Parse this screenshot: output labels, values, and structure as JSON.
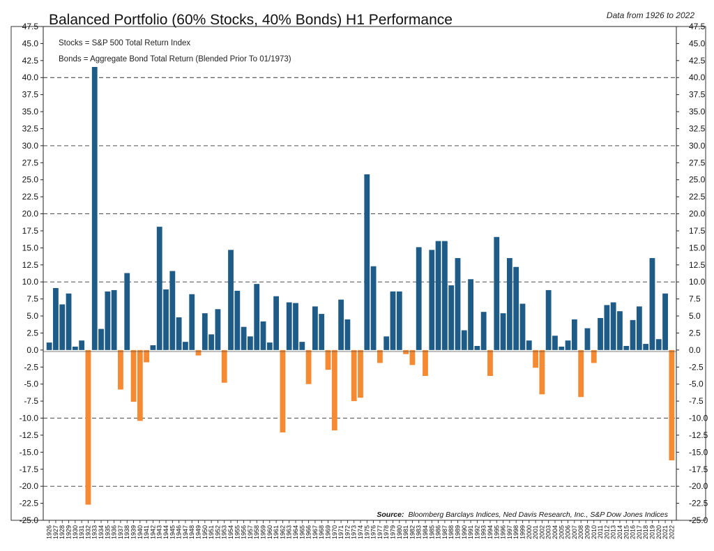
{
  "chart_data": {
    "type": "bar",
    "title": "Balanced Portfolio (60% Stocks, 40% Bonds) H1 Performance",
    "date_range": "Data from 1926 to 2022",
    "notes": [
      "Stocks = S&P 500 Total Return Index",
      "Bonds = Aggregate Bond Total Return (Blended Prior To 01/1973)"
    ],
    "source_label": "Source:",
    "source_text": "Bloomberg Barclays Indices, Ned Davis Research, Inc., S&P Dow Jones Indices",
    "ylim": [
      -25,
      47.5
    ],
    "ytick_labels": [
      "47.5",
      "45.0",
      "42.5",
      "40.0",
      "37.5",
      "35.0",
      "32.5",
      "30.0",
      "27.5",
      "25.0",
      "22.5",
      "20.0",
      "17.5",
      "15.0",
      "12.5",
      "10.0",
      "7.5",
      "5.0",
      "2.5",
      "0.0",
      "-2.5",
      "-5.0",
      "-7.5",
      "-10.0",
      "-12.5",
      "-15.0",
      "-17.5",
      "-20.0",
      "-22.5",
      "-25.0"
    ],
    "dashed_gridlines": [
      40,
      30,
      20,
      10,
      -10,
      -20
    ],
    "grid": "dashed lines every 10 units",
    "positive_color": "#1f5b87",
    "negative_color": "#f58a33",
    "categories": [
      "1926",
      "1927",
      "1928",
      "1929",
      "1930",
      "1931",
      "1932",
      "1933",
      "1934",
      "1935",
      "1936",
      "1937",
      "1938",
      "1939",
      "1940",
      "1941",
      "1942",
      "1943",
      "1944",
      "1945",
      "1946",
      "1947",
      "1948",
      "1949",
      "1950",
      "1951",
      "1952",
      "1953",
      "1954",
      "1955",
      "1956",
      "1957",
      "1958",
      "1959",
      "1960",
      "1961",
      "1962",
      "1963",
      "1964",
      "1965",
      "1966",
      "1967",
      "1968",
      "1969",
      "1970",
      "1971",
      "1972",
      "1973",
      "1974",
      "1975",
      "1976",
      "1977",
      "1978",
      "1979",
      "1980",
      "1981",
      "1982",
      "1983",
      "1984",
      "1985",
      "1986",
      "1987",
      "1988",
      "1989",
      "1990",
      "1991",
      "1992",
      "1993",
      "1994",
      "1995",
      "1996",
      "1997",
      "1998",
      "1999",
      "2000",
      "2001",
      "2002",
      "2003",
      "2004",
      "2005",
      "2006",
      "2007",
      "2008",
      "2009",
      "2010",
      "2011",
      "2012",
      "2013",
      "2014",
      "2015",
      "2016",
      "2017",
      "2018",
      "2019",
      "2020",
      "2021",
      "2022"
    ],
    "values": [
      1.1,
      9.1,
      6.7,
      8.3,
      0.5,
      1.4,
      -22.7,
      42.2,
      3.1,
      8.6,
      8.8,
      -5.8,
      11.3,
      -7.6,
      -10.4,
      -1.8,
      0.7,
      18.1,
      8.9,
      11.6,
      4.8,
      1.2,
      8.2,
      -0.8,
      5.4,
      2.3,
      6.0,
      -4.8,
      14.7,
      8.7,
      3.4,
      2.0,
      9.7,
      4.2,
      1.1,
      7.9,
      -12.1,
      7.0,
      6.9,
      1.2,
      -5.0,
      6.4,
      5.3,
      -2.9,
      -11.8,
      7.4,
      4.5,
      -7.5,
      -7.0,
      25.8,
      12.3,
      -1.9,
      2.0,
      8.6,
      8.6,
      -0.6,
      -2.2,
      15.1,
      -3.8,
      14.7,
      16.0,
      16.0,
      9.5,
      13.5,
      2.9,
      10.4,
      0.6,
      5.6,
      -3.8,
      16.6,
      5.4,
      13.5,
      12.2,
      6.8,
      1.4,
      -2.6,
      -6.5,
      8.8,
      2.1,
      0.5,
      1.4,
      4.5,
      -6.9,
      3.2,
      -1.9,
      4.7,
      6.6,
      7.0,
      5.7,
      0.6,
      4.4,
      6.4,
      0.9,
      13.5,
      1.6,
      8.3,
      -16.2
    ]
  }
}
